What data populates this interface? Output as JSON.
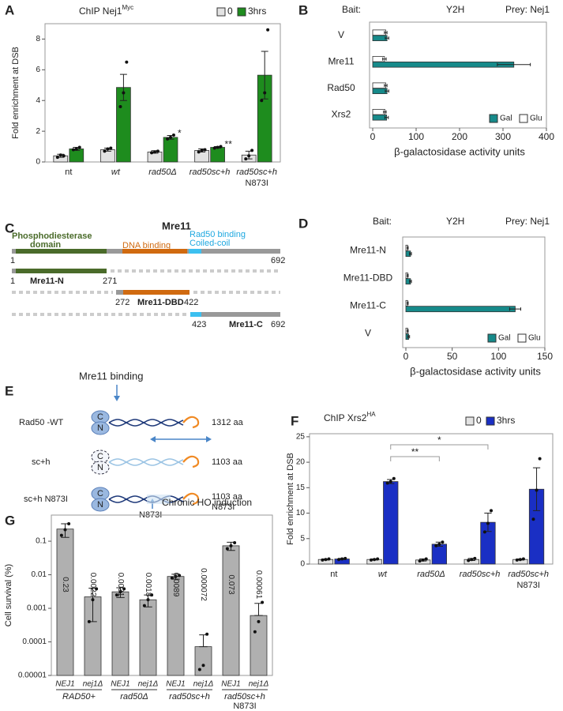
{
  "chart_data": [
    {
      "panel": "A",
      "type": "bar",
      "title": "ChIP Nej1",
      "title_superscript": "Myc",
      "ylabel": "Fold enrichment at DSB",
      "categories": [
        "nt",
        "wt",
        "rad50Δ",
        "rad50sc+h",
        "rad50sc+h"
      ],
      "category_sublabels": [
        null,
        null,
        null,
        null,
        "N873I"
      ],
      "category_italic": [
        false,
        true,
        true,
        true,
        true
      ],
      "series": [
        {
          "name": "0",
          "color": "#e3e3e3",
          "values": [
            0.4,
            0.8,
            0.65,
            0.75,
            0.45
          ],
          "errors": [
            0.1,
            0.1,
            0.08,
            0.1,
            0.25
          ],
          "points": [
            [
              0.3,
              0.45,
              0.4
            ],
            [
              0.7,
              0.85,
              0.9
            ],
            [
              0.6,
              0.65,
              0.7
            ],
            [
              0.65,
              0.75,
              0.8
            ],
            [
              0.2,
              0.4,
              0.75
            ]
          ]
        },
        {
          "name": "3hrs",
          "color": "#1e8c1e",
          "values": [
            0.85,
            4.85,
            1.6,
            0.95,
            5.65
          ],
          "errors": [
            0.1,
            0.85,
            0.12,
            0.05,
            1.55
          ],
          "points": [
            [
              0.8,
              0.85,
              0.95
            ],
            [
              3.6,
              4.5,
              6.5
            ],
            [
              1.5,
              1.6,
              1.75
            ],
            [
              0.9,
              0.95,
              1.0
            ],
            [
              4.0,
              4.5,
              8.6
            ]
          ]
        }
      ],
      "ylim": [
        0,
        9
      ],
      "yticks": [
        0,
        2,
        4,
        6,
        8
      ],
      "legend": "top-right",
      "annotations": [
        {
          "text": "*",
          "category": "rad50Δ",
          "series": "3hrs"
        },
        {
          "text": "**",
          "category": "rad50sc+h",
          "series": "3hrs"
        }
      ]
    },
    {
      "panel": "B",
      "type": "hbar",
      "header": [
        "Bait:",
        "Y2H",
        "Prey: Nej1"
      ],
      "categories": [
        "V",
        "Mre11",
        "Rad50",
        "Xrs2"
      ],
      "series": [
        {
          "name": "Gal",
          "color": "#168a8a",
          "values": [
            33,
            325,
            33,
            32
          ],
          "errors": [
            4,
            38,
            4,
            4
          ]
        },
        {
          "name": "Glu",
          "color": "#ffffff",
          "values": [
            30,
            27,
            30,
            28
          ],
          "errors": [
            3,
            4,
            3,
            3
          ]
        }
      ],
      "xlim": [
        0,
        400
      ],
      "xticks": [
        0,
        100,
        200,
        300,
        400
      ],
      "xlabel": "β-galactosidase activity units",
      "legend": "bottom-right"
    },
    {
      "panel": "D",
      "type": "hbar",
      "header": [
        "Bait:",
        "Y2H",
        "Prey: Nej1"
      ],
      "categories": [
        "Mre11-N",
        "Mre11-DBD",
        "Mre11-C",
        "V"
      ],
      "series": [
        {
          "name": "Gal",
          "color": "#168a8a",
          "values": [
            5,
            5,
            118,
            3
          ],
          "errors": [
            1,
            1,
            6,
            1
          ]
        },
        {
          "name": "Glu",
          "color": "#ffffff",
          "values": [
            2,
            2,
            2,
            2
          ],
          "errors": [
            0.5,
            0.5,
            0.5,
            0.5
          ]
        }
      ],
      "xlim": [
        0,
        150
      ],
      "xticks": [
        0,
        50,
        100,
        150
      ],
      "xlabel": "β-galactosidase activity units",
      "legend": "bottom-right"
    },
    {
      "panel": "F",
      "type": "bar",
      "title": "ChIP Xrs2",
      "title_superscript": "HA",
      "ylabel": "Fold enrichment at DSB",
      "categories": [
        "nt",
        "wt",
        "rad50Δ",
        "rad50sc+h",
        "rad50sc+h"
      ],
      "category_sublabels": [
        null,
        null,
        null,
        null,
        "N873I"
      ],
      "category_italic": [
        false,
        true,
        true,
        true,
        true
      ],
      "series": [
        {
          "name": "0",
          "color": "#e3e3e3",
          "values": [
            0.9,
            0.9,
            0.8,
            0.9,
            0.9
          ],
          "errors": [
            0.1,
            0.1,
            0.2,
            0.2,
            0.1
          ],
          "points": [
            [
              0.8,
              0.9,
              1.0
            ],
            [
              0.8,
              0.9,
              1.0
            ],
            [
              0.6,
              0.8,
              1.0
            ],
            [
              0.7,
              0.9,
              1.1
            ],
            [
              0.8,
              0.9,
              1.0
            ]
          ]
        },
        {
          "name": "3hrs",
          "color": "#1a2fc4",
          "values": [
            1.0,
            16.2,
            3.9,
            8.2,
            14.7
          ],
          "errors": [
            0.1,
            0.4,
            0.4,
            1.8,
            4.2
          ],
          "points": [
            [
              0.9,
              1.0,
              1.1
            ],
            [
              15.9,
              16.2,
              16.8
            ],
            [
              3.6,
              3.9,
              4.3
            ],
            [
              6.3,
              8.0,
              10.5
            ],
            [
              8.8,
              14.5,
              20.7
            ]
          ]
        }
      ],
      "ylim": [
        0,
        25.6
      ],
      "yticks": [
        0,
        5,
        10,
        15,
        20,
        25
      ],
      "legend": "top-right",
      "brackets": [
        {
          "text": "**",
          "from": "wt",
          "to": "rad50Δ"
        },
        {
          "text": "*",
          "from": "wt",
          "to": "rad50sc+h"
        }
      ]
    },
    {
      "panel": "G",
      "type": "bar",
      "log": true,
      "title": "Chronic HO induction",
      "ylabel": "Cell survival (%)",
      "categories": [
        "NEJ1",
        "nej1Δ",
        "NEJ1",
        "nej1Δ",
        "NEJ1",
        "nej1Δ",
        "NEJ1",
        "nej1Δ"
      ],
      "category_italic": [
        true,
        true,
        true,
        true,
        true,
        true,
        true,
        true
      ],
      "group_labels": [
        "RAD50+",
        "rad50Δ",
        "rad50sc+h",
        "rad50sc+h"
      ],
      "group_sublabels": [
        null,
        null,
        null,
        "N873I"
      ],
      "color": "#b0b0b0",
      "values": [
        0.23,
        0.0022,
        0.0031,
        0.0018,
        0.0089,
        7.2e-05,
        0.073,
        0.00061
      ],
      "value_labels": [
        "0.23",
        "0.0022",
        "0.0031",
        "0.0018",
        "0.0089",
        "0.000072",
        "0.073",
        "0.00061"
      ],
      "errors": [
        0.1,
        0.0018,
        0.001,
        0.0007,
        0.0015,
        9e-05,
        0.02,
        0.0008
      ],
      "points": [
        [
          0.15,
          0.22,
          0.33
        ],
        [
          0.0004,
          0.0018,
          0.0038
        ],
        [
          0.0025,
          0.0031,
          0.0038
        ],
        [
          0.0012,
          0.0018,
          0.0025
        ],
        [
          0.008,
          0.0089,
          0.0095
        ],
        [
          1.5e-05,
          2e-05,
          0.00017
        ],
        [
          0.06,
          0.073,
          0.09
        ],
        [
          0.0002,
          0.0004,
          0.0015
        ]
      ],
      "ylim": [
        1e-05,
        0.6
      ],
      "yticks": [
        1e-05,
        0.0001,
        0.001,
        0.01,
        0.1
      ]
    }
  ],
  "diagram_C": {
    "panel": "C",
    "title": "Mre11",
    "domain_labels": [
      [
        "Phosphodiesterase",
        "domain"
      ],
      [
        "DNA binding"
      ],
      [
        "Rad50 binding",
        "Coiled-coil"
      ]
    ],
    "full_start": 1,
    "full_end": 692,
    "fragments": [
      {
        "name": "Mre11-N",
        "start": 1,
        "end": 271
      },
      {
        "name": "Mre11-DBD",
        "start": 272,
        "end": 422
      },
      {
        "name": "Mre11-C",
        "start": 423,
        "end": 692
      }
    ]
  },
  "diagram_E": {
    "panel": "E",
    "binding_label": "Mre11 binding",
    "termini": [
      "C",
      "N"
    ],
    "constructs": [
      {
        "name": "Rad50 -WT",
        "length": "1312 aa"
      },
      {
        "name": "sc+h",
        "length": "1103 aa"
      },
      {
        "name": "sc+h N873I",
        "length": "1103 aa",
        "length_note": "N873I",
        "mutation": "N873I"
      }
    ]
  }
}
